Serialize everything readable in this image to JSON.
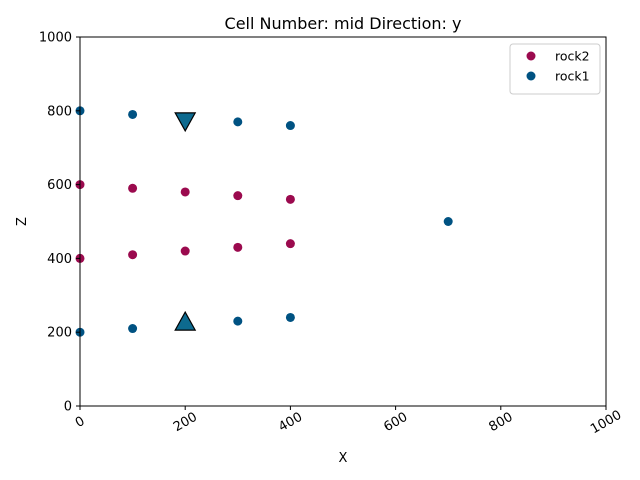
{
  "chart_data": {
    "type": "scatter",
    "title": "Cell Number: mid Direction: y",
    "xlabel": "X",
    "ylabel": "Z",
    "xlim": [
      0,
      1000
    ],
    "ylim": [
      0,
      1000
    ],
    "xticks": [
      0,
      200,
      400,
      600,
      800,
      1000
    ],
    "yticks": [
      0,
      200,
      400,
      600,
      800,
      1000
    ],
    "grid": false,
    "legend_position": "top-right",
    "series": [
      {
        "name": "rock2",
        "color": "#9b0a4e",
        "x": [
          0,
          100,
          200,
          300,
          400,
          0,
          100,
          200,
          300,
          400
        ],
        "y": [
          600,
          590,
          580,
          570,
          560,
          400,
          410,
          420,
          430,
          440
        ]
      },
      {
        "name": "rock1",
        "color": "#005282",
        "x": [
          0,
          100,
          200,
          300,
          400,
          0,
          100,
          200,
          300,
          400,
          700
        ],
        "y": [
          800,
          790,
          780,
          770,
          760,
          200,
          210,
          220,
          230,
          240,
          500
        ]
      }
    ],
    "markers": [
      {
        "shape": "triangle-down",
        "x": 200,
        "y": 770
      },
      {
        "shape": "triangle-up",
        "x": 200,
        "y": 230
      }
    ]
  }
}
